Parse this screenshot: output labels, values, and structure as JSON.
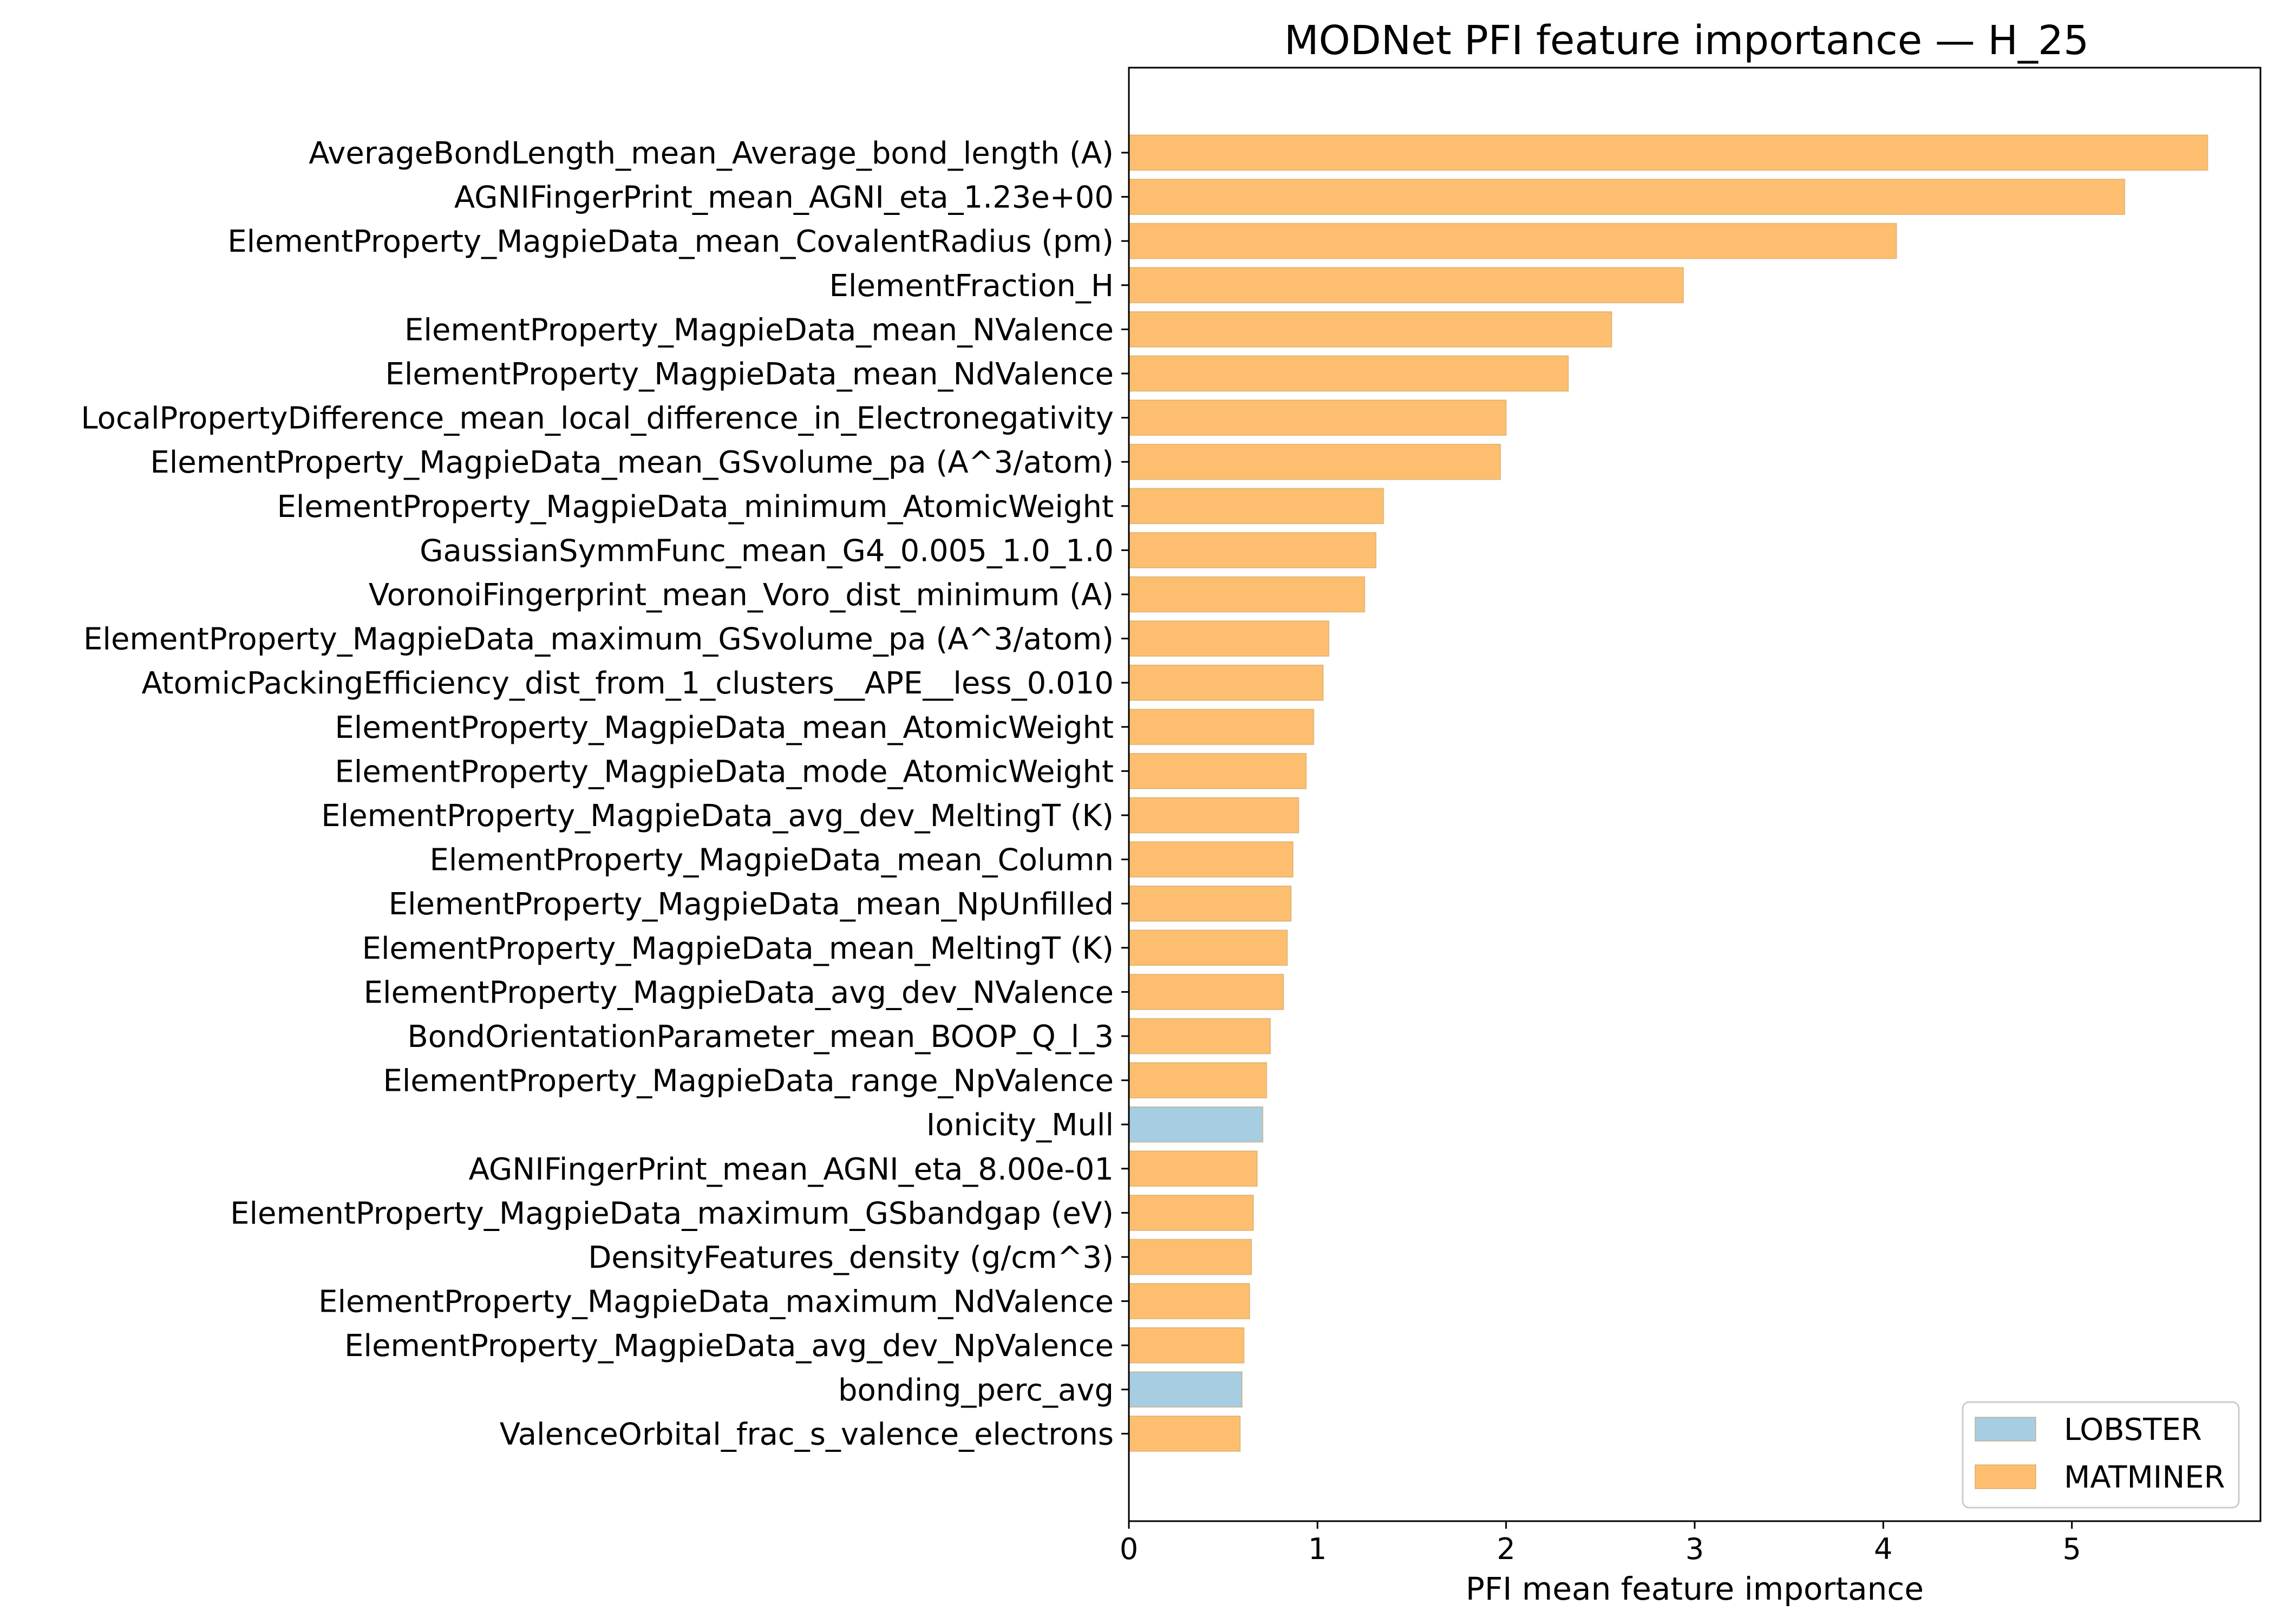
{
  "chart_data": {
    "type": "bar",
    "orientation": "horizontal",
    "title": "MODNet PFI feature importance — H_25",
    "xlabel": "PFI mean feature importance",
    "ylabel": "",
    "xlim": [
      0,
      6.0
    ],
    "xticks": [
      0,
      1,
      2,
      3,
      4,
      5
    ],
    "grid": false,
    "legend_position": "lower-right",
    "colors": {
      "LOBSTER": "#a6cde2",
      "MATMINER": "#fdbf6f"
    },
    "legend": [
      {
        "name": "LOBSTER",
        "color": "#a6cde2"
      },
      {
        "name": "MATMINER",
        "color": "#fdbf6f"
      }
    ],
    "bars": [
      {
        "label": "AverageBondLength_mean_Average_bond_length (A)",
        "value": 5.72,
        "group": "MATMINER"
      },
      {
        "label": "AGNIFingerPrint_mean_AGNI_eta_1.23e+00",
        "value": 5.28,
        "group": "MATMINER"
      },
      {
        "label": "ElementProperty_MagpieData_mean_CovalentRadius (pm)",
        "value": 4.07,
        "group": "MATMINER"
      },
      {
        "label": "ElementFraction_H",
        "value": 2.94,
        "group": "MATMINER"
      },
      {
        "label": "ElementProperty_MagpieData_mean_NValence",
        "value": 2.56,
        "group": "MATMINER"
      },
      {
        "label": "ElementProperty_MagpieData_mean_NdValence",
        "value": 2.33,
        "group": "MATMINER"
      },
      {
        "label": "LocalPropertyDifference_mean_local_difference_in_Electronegativity",
        "value": 2.0,
        "group": "MATMINER"
      },
      {
        "label": "ElementProperty_MagpieData_mean_GSvolume_pa (A^3/atom)",
        "value": 1.97,
        "group": "MATMINER"
      },
      {
        "label": "ElementProperty_MagpieData_minimum_AtomicWeight",
        "value": 1.35,
        "group": "MATMINER"
      },
      {
        "label": "GaussianSymmFunc_mean_G4_0.005_1.0_1.0",
        "value": 1.31,
        "group": "MATMINER"
      },
      {
        "label": "VoronoiFingerprint_mean_Voro_dist_minimum (A)",
        "value": 1.25,
        "group": "MATMINER"
      },
      {
        "label": "ElementProperty_MagpieData_maximum_GSvolume_pa (A^3/atom)",
        "value": 1.06,
        "group": "MATMINER"
      },
      {
        "label": "AtomicPackingEfficiency_dist_from_1_clusters__APE__less_0.010",
        "value": 1.03,
        "group": "MATMINER"
      },
      {
        "label": "ElementProperty_MagpieData_mean_AtomicWeight",
        "value": 0.98,
        "group": "MATMINER"
      },
      {
        "label": "ElementProperty_MagpieData_mode_AtomicWeight",
        "value": 0.94,
        "group": "MATMINER"
      },
      {
        "label": "ElementProperty_MagpieData_avg_dev_MeltingT (K)",
        "value": 0.9,
        "group": "MATMINER"
      },
      {
        "label": "ElementProperty_MagpieData_mean_Column",
        "value": 0.87,
        "group": "MATMINER"
      },
      {
        "label": "ElementProperty_MagpieData_mean_NpUnfilled",
        "value": 0.86,
        "group": "MATMINER"
      },
      {
        "label": "ElementProperty_MagpieData_mean_MeltingT (K)",
        "value": 0.84,
        "group": "MATMINER"
      },
      {
        "label": "ElementProperty_MagpieData_avg_dev_NValence",
        "value": 0.82,
        "group": "MATMINER"
      },
      {
        "label": "BondOrientationParameter_mean_BOOP_Q_l_3",
        "value": 0.75,
        "group": "MATMINER"
      },
      {
        "label": "ElementProperty_MagpieData_range_NpValence",
        "value": 0.73,
        "group": "MATMINER"
      },
      {
        "label": "Ionicity_Mull",
        "value": 0.71,
        "group": "LOBSTER"
      },
      {
        "label": "AGNIFingerPrint_mean_AGNI_eta_8.00e-01",
        "value": 0.68,
        "group": "MATMINER"
      },
      {
        "label": "ElementProperty_MagpieData_maximum_GSbandgap (eV)",
        "value": 0.66,
        "group": "MATMINER"
      },
      {
        "label": "DensityFeatures_density (g/cm^3)",
        "value": 0.65,
        "group": "MATMINER"
      },
      {
        "label": "ElementProperty_MagpieData_maximum_NdValence",
        "value": 0.64,
        "group": "MATMINER"
      },
      {
        "label": "ElementProperty_MagpieData_avg_dev_NpValence",
        "value": 0.61,
        "group": "MATMINER"
      },
      {
        "label": "bonding_perc_avg",
        "value": 0.6,
        "group": "LOBSTER"
      },
      {
        "label": "ValenceOrbital_frac_s_valence_electrons",
        "value": 0.59,
        "group": "MATMINER"
      }
    ]
  }
}
